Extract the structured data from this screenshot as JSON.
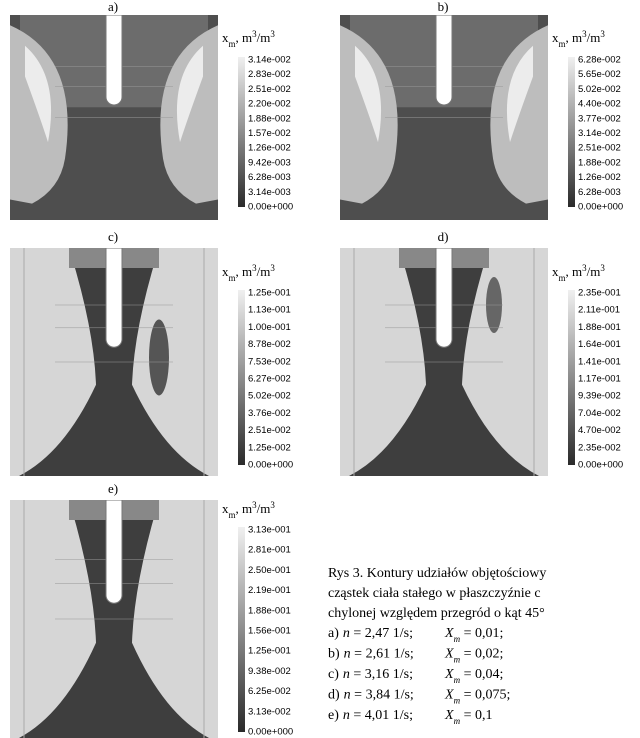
{
  "legend_title": [
    "x",
    "m",
    ", m",
    "3",
    "/m",
    "3"
  ],
  "panels": [
    {
      "label": "a)",
      "ticks": [
        "3.14e-002",
        "2.83e-002",
        "2.51e-002",
        "2.20e-002",
        "1.88e-002",
        "1.57e-002",
        "1.26e-002",
        "9.42e-003",
        "6.28e-003",
        "3.14e-003",
        "0.00e+000"
      ]
    },
    {
      "label": "b)",
      "ticks": [
        "6.28e-002",
        "5.65e-002",
        "5.02e-002",
        "4.40e-002",
        "3.77e-002",
        "3.14e-002",
        "2.51e-002",
        "1.88e-002",
        "1.26e-002",
        "6.28e-003",
        "0.00e+000"
      ]
    },
    {
      "label": "c)",
      "ticks": [
        "1.25e-001",
        "1.13e-001",
        "1.00e-001",
        "8.78e-002",
        "7.53e-002",
        "6.27e-002",
        "5.02e-002",
        "3.76e-002",
        "2.51e-002",
        "1.25e-002",
        "0.00e+000"
      ]
    },
    {
      "label": "d)",
      "ticks": [
        "2.35e-001",
        "2.11e-001",
        "1.88e-001",
        "1.64e-001",
        "1.41e-001",
        "1.17e-001",
        "9.39e-002",
        "7.04e-002",
        "4.70e-002",
        "2.35e-002",
        "0.00e+000"
      ]
    },
    {
      "label": "e)",
      "ticks": [
        "3.13e-001",
        "2.81e-001",
        "2.50e-001",
        "2.19e-001",
        "1.88e-001",
        "1.56e-001",
        "1.25e-001",
        "9.38e-002",
        "6.25e-002",
        "3.13e-002",
        "0.00e+000"
      ]
    }
  ],
  "caption": {
    "lines": [
      "Rys 3. Kontury udziałów objętościowy",
      "cząstek ciała stałego w płaszczyźnie c",
      "chylonej względem przegród o kąt 45°"
    ],
    "items": [
      [
        "a)",
        "n",
        " = 2,47 1/s;",
        "X",
        "m",
        " = 0,01;"
      ],
      [
        "b)",
        "n",
        " = 2,61 1/s;",
        "X",
        "m",
        " = 0,02;"
      ],
      [
        "c)",
        "n",
        " = 3,16 1/s;",
        "X",
        "m",
        " = 0,04;"
      ],
      [
        "d)",
        "n",
        " = 3,84 1/s;",
        "X",
        "m",
        " = 0,075;"
      ],
      [
        "e)",
        "n",
        " = 4,01 1/s;",
        "X",
        "m",
        " = 0,1"
      ]
    ]
  }
}
